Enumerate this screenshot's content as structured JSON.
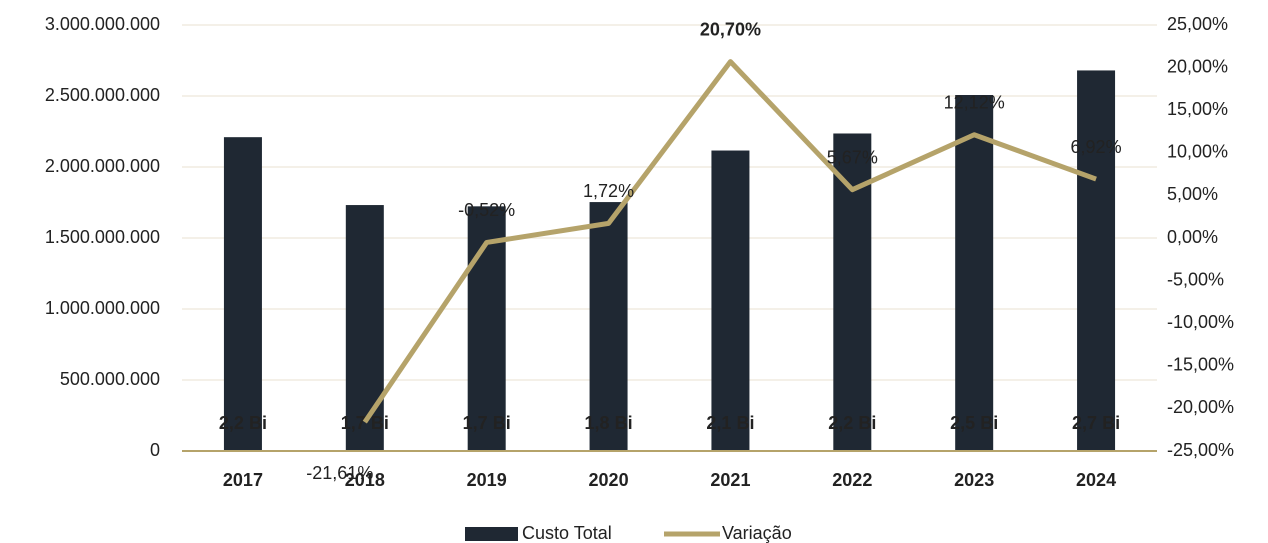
{
  "chart_data": {
    "type": "bar_line",
    "categories": [
      "2017",
      "2018",
      "2019",
      "2020",
      "2021",
      "2022",
      "2023",
      "2024"
    ],
    "series": [
      {
        "name": "Custo Total",
        "type": "bar",
        "color": "#1f2833",
        "values": [
          2210000000,
          1732000000,
          1723000000,
          1753000000,
          2116000000,
          2236000000,
          2507000000,
          2680000000
        ],
        "value_labels": [
          "2,2 Bi",
          "1,7 Bi",
          "1,7 Bi",
          "1,8 Bi",
          "2,1 Bi",
          "2,2 Bi",
          "2,5 Bi",
          "2,7 Bi"
        ]
      },
      {
        "name": "Variação",
        "type": "line",
        "axis": "y2",
        "color": "#b5a36a",
        "values": [
          null,
          -21.61,
          -0.52,
          1.72,
          20.7,
          5.67,
          12.12,
          6.92
        ],
        "value_labels": [
          null,
          "-21,61%",
          "-0,52%",
          "1,72%",
          "20,70%",
          "5,67%",
          "12,12%",
          "6,92%"
        ]
      }
    ],
    "ylim": [
      0,
      3000000000
    ],
    "yticks": [
      0,
      {
        "value": 500000000,
        "label": "500.000.000"
      },
      {
        "value": 1000000000,
        "label": "1.000.000.000"
      },
      {
        "value": 1500000000,
        "label": "1.500.000.000"
      },
      {
        "value": 2000000000,
        "label": "2.000.000.000"
      },
      {
        "value": 2500000000,
        "label": "2.500.000.000"
      },
      {
        "value": 3000000000,
        "label": "3.000.000.000"
      }
    ],
    "y2lim": [
      -25,
      25
    ],
    "y2ticks": [
      {
        "value": -25,
        "label": "-25,00%"
      },
      {
        "value": -20,
        "label": "-20,00%"
      },
      {
        "value": -15,
        "label": "-15,00%"
      },
      {
        "value": -10,
        "label": "-10,00%"
      },
      {
        "value": -5,
        "label": "-5,00%"
      },
      {
        "value": 0,
        "label": "0,00%"
      },
      {
        "value": 5,
        "label": "5,00%"
      },
      {
        "value": 10,
        "label": "10,00%"
      },
      {
        "value": 15,
        "label": "15,00%"
      },
      {
        "value": 20,
        "label": "20,00%"
      },
      {
        "value": 25,
        "label": "25,00%"
      }
    ],
    "grid": true,
    "legend": "bottom"
  }
}
